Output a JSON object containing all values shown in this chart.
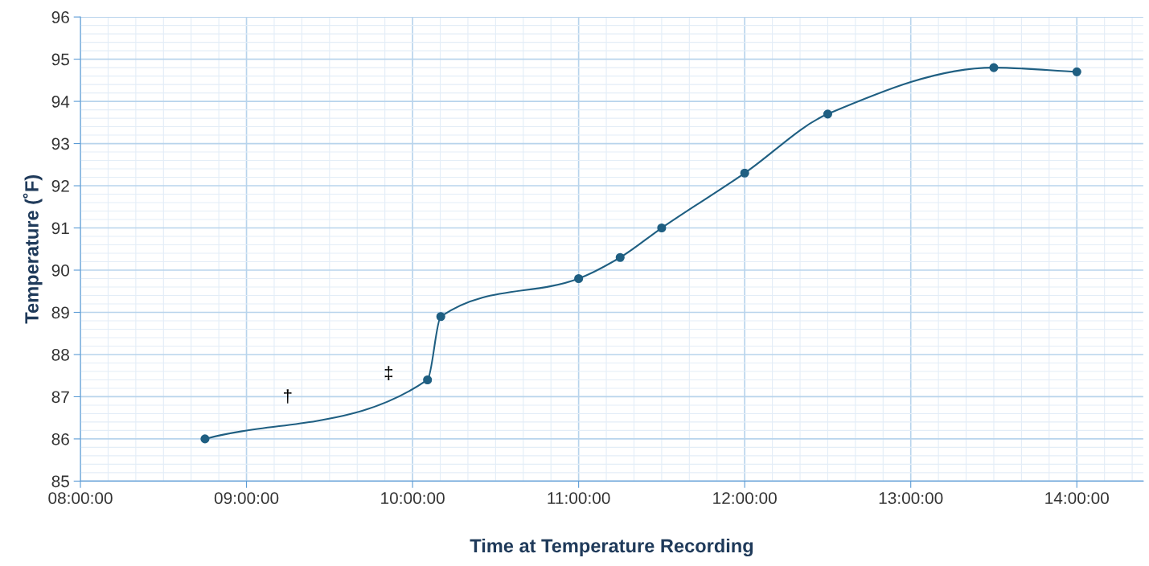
{
  "chart_data": {
    "type": "line",
    "xlabel": "Time at Temperature Recording",
    "ylabel": "Temperature (˚F)",
    "x": [
      8.75,
      10.09,
      10.17,
      11.0,
      11.25,
      11.5,
      12.0,
      12.5,
      13.5,
      14.0
    ],
    "series": [
      {
        "color": "#1f5f82",
        "values": [
          86.0,
          87.4,
          88.9,
          89.8,
          90.3,
          91.0,
          92.3,
          93.7,
          94.8,
          94.7
        ]
      }
    ],
    "xlim": [
      8,
      14.4
    ],
    "xticks": [
      {
        "value": 8,
        "label": "08:00:00"
      },
      {
        "value": 9,
        "label": "09:00:00"
      },
      {
        "value": 10,
        "label": "10:00:00"
      },
      {
        "value": 11,
        "label": "11:00:00"
      },
      {
        "value": 12,
        "label": "12:00:00"
      },
      {
        "value": 13,
        "label": "13:00:00"
      },
      {
        "value": 14,
        "label": "14:00:00"
      }
    ],
    "ylim": [
      85,
      96
    ],
    "yticks": [
      85,
      86,
      87,
      88,
      89,
      90,
      91,
      92,
      93,
      94,
      95,
      96
    ],
    "grid": true,
    "marker": "circle",
    "line_style": "solid",
    "annotations": [
      "†",
      "‡"
    ]
  }
}
